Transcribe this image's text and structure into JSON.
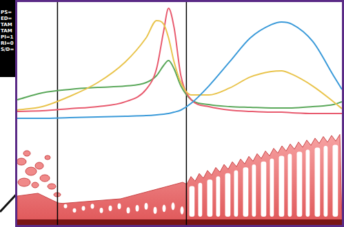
{
  "chart_data": {
    "type": "line",
    "x": [
      0,
      7.7,
      16.2,
      24.8,
      33.3,
      39.7,
      42.9,
      45.1,
      46.6,
      48.3,
      50.4,
      53.6,
      59.0,
      65.4,
      71.8,
      78.2,
      81.4,
      84.6,
      91.0,
      97.4,
      100
    ],
    "series": [
      {
        "color": "#3a9ad9",
        "values": [
          7.2,
          7.2,
          7.8,
          8.3,
          8.9,
          9.4,
          10,
          10.6,
          11.1,
          12.2,
          13.9,
          19.4,
          33.3,
          52.8,
          72.2,
          82.8,
          85,
          83.3,
          69.4,
          41.7,
          30.6
        ]
      },
      {
        "color": "#e9c44c",
        "values": [
          13.9,
          16.7,
          25,
          36.1,
          52.8,
          72.2,
          86.1,
          83.3,
          72.2,
          52.8,
          36.1,
          26.1,
          26.1,
          31.7,
          40.6,
          45,
          45.6,
          42.8,
          33.3,
          20.6,
          15
        ]
      },
      {
        "color": "#e85a6e",
        "values": [
          12.8,
          13.3,
          15,
          16.7,
          20.6,
          30.6,
          47.2,
          77.8,
          96.1,
          80.6,
          41.7,
          22.2,
          16.7,
          13.9,
          12.8,
          12.2,
          12.2,
          11.7,
          11.1,
          11.1,
          11.1
        ]
      },
      {
        "color": "#5aa85a",
        "values": [
          22.2,
          27.8,
          30.6,
          32.2,
          33.3,
          36.1,
          41.7,
          50,
          53.9,
          47.2,
          33.3,
          22.2,
          18.3,
          16.7,
          16.1,
          15.6,
          15.6,
          15.6,
          16.7,
          18.3,
          20.6
        ]
      }
    ],
    "xlim": [
      0,
      100
    ],
    "ylim": [
      0,
      100
    ],
    "vlines": [
      12.4,
      52.1
    ],
    "grid": false,
    "tick_labels": false
  },
  "inset": {
    "lines": [
      "PS=",
      "ED=",
      "TAM",
      "TAM",
      "PI=1",
      "RI=0",
      "S/D="
    ]
  }
}
